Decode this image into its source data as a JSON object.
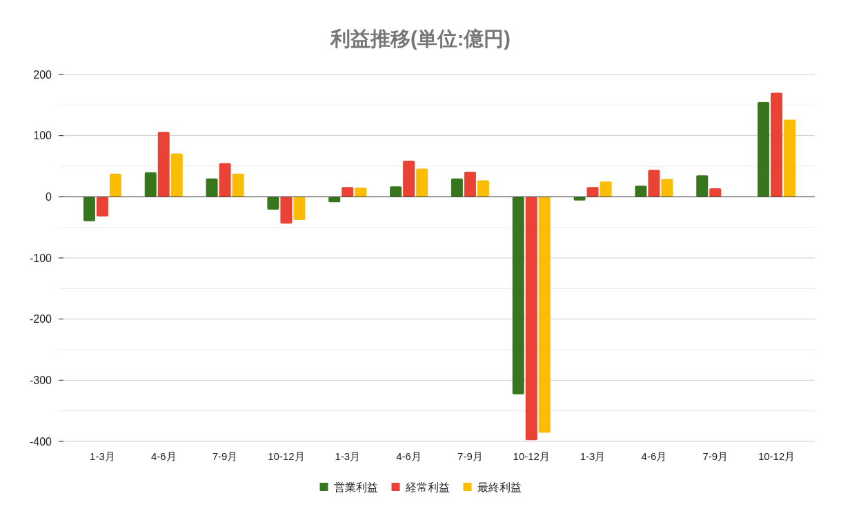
{
  "chart_data": {
    "type": "bar",
    "title": "利益推移(単位:億円)",
    "categories": [
      "1-3月",
      "4-6月",
      "7-9月",
      "10-12月",
      "1-3月",
      "4-6月",
      "7-9月",
      "10-12月",
      "1-3月",
      "4-6月",
      "7-9月",
      "10-12月"
    ],
    "series": [
      {
        "name": "営業利益",
        "color": "#38761d",
        "values": [
          -40,
          40,
          30,
          -21,
          -9,
          17,
          30,
          -323,
          -6,
          18,
          35,
          155
        ]
      },
      {
        "name": "経常利益",
        "color": "#ea4335",
        "values": [
          -32,
          106,
          55,
          -44,
          16,
          59,
          41,
          -398,
          16,
          44,
          14,
          170
        ]
      },
      {
        "name": "最終利益",
        "color": "#fbbc04",
        "values": [
          38,
          71,
          38,
          -38,
          15,
          46,
          27,
          -386,
          25,
          29,
          null,
          126
        ]
      }
    ],
    "ylim": [
      -400,
      200
    ],
    "yticks": [
      -400,
      {
        "value": -350,
        "label": null
      },
      -300,
      {
        "value": -250,
        "label": null
      },
      -200,
      {
        "value": -150,
        "label": null
      },
      -100,
      {
        "value": -50,
        "label": null
      },
      0,
      {
        "value": 50,
        "label": null
      },
      100,
      {
        "value": 150,
        "label": null
      },
      200
    ],
    "grid": true,
    "legend": "bottom"
  }
}
